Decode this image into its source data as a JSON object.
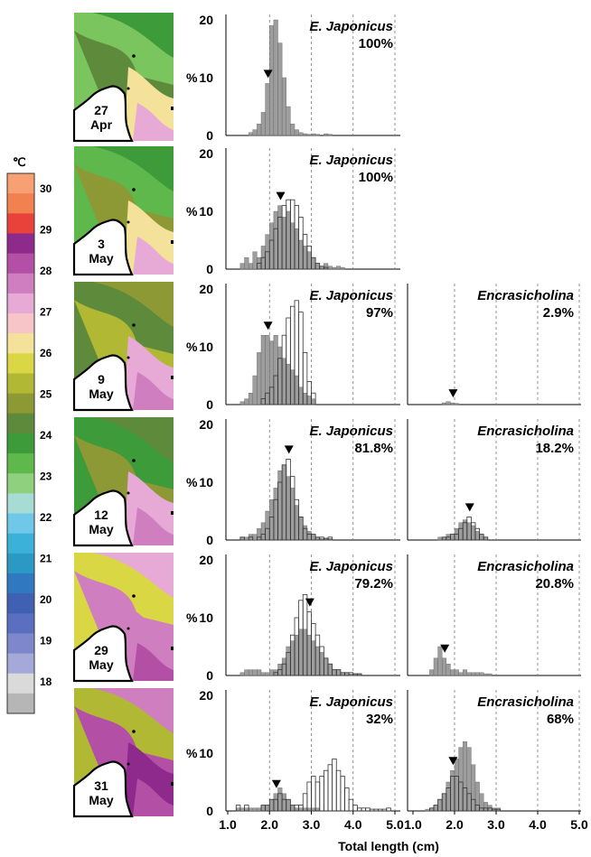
{
  "colorbar": {
    "unit": "℃",
    "ticks": [
      "30",
      "29",
      "28",
      "27",
      "26",
      "25",
      "24",
      "23",
      "22",
      "21",
      "20",
      "19",
      "18"
    ],
    "colors": [
      "#f6a073",
      "#f1824f",
      "#e8423a",
      "#8e2a8c",
      "#b44fa6",
      "#cf7ec0",
      "#e7aad6",
      "#f7c5c8",
      "#f4e19a",
      "#d9d743",
      "#b1b834",
      "#8d9934",
      "#5e8a3c",
      "#3e9b3a",
      "#5fb84c",
      "#8ed07d",
      "#a6dcd4",
      "#6fc8ea",
      "#3bb1d9",
      "#2a9ac5",
      "#3078c0",
      "#3f60b3",
      "#5a6fc0",
      "#7e87cc",
      "#a4a9d9",
      "#dadada",
      "#b6b6b6"
    ]
  },
  "maps": [
    {
      "day": "27",
      "month": "Apr"
    },
    {
      "day": "3",
      "month": "May"
    },
    {
      "day": "9",
      "month": "May"
    },
    {
      "day": "12",
      "month": "May"
    },
    {
      "day": "29",
      "month": "May"
    },
    {
      "day": "31",
      "month": "May"
    }
  ],
  "axis": {
    "xlabel": "Total length (cm)",
    "left_xticks": [
      "1.0",
      "2.0",
      "3.0",
      "4.0",
      "5.0"
    ],
    "right_xticks": [
      "1.0",
      "2.0",
      "3.0",
      "4.0",
      "5.0"
    ],
    "ylabel": "%",
    "yticks": [
      "20",
      "10",
      "0"
    ]
  },
  "chart_data": [
    {
      "type": "bar",
      "panel": "row1-left",
      "species": "E. Japonicus",
      "percent": "100%",
      "xlim": [
        1.0,
        5.0
      ],
      "ylim": [
        0,
        20
      ],
      "marker_x": 1.9,
      "bin_width": 0.1,
      "bin_start": 1.5,
      "series": [
        {
          "name": "filled",
          "values": [
            0.5,
            1,
            2,
            4,
            9,
            19,
            20,
            16,
            10,
            5,
            2,
            1,
            0.5,
            0.3,
            0.2,
            0.3,
            0.2,
            0,
            0.3,
            0.2
          ]
        }
      ]
    },
    {
      "type": "bar",
      "panel": "row2-left",
      "species": "E. Japonicus",
      "percent": "100%",
      "xlim": [
        1.0,
        5.0
      ],
      "ylim": [
        0,
        20
      ],
      "marker_x": 2.2,
      "bin_width": 0.1,
      "bin_start": 1.3,
      "series": [
        {
          "name": "filled",
          "values": [
            1,
            2,
            1,
            3,
            2,
            4,
            6,
            8,
            10,
            11,
            9,
            10,
            8,
            7,
            5,
            4,
            3,
            2,
            1,
            0.5,
            1,
            0.5,
            0.3,
            0.5,
            0.3
          ]
        },
        {
          "name": "open",
          "values": [
            0,
            0,
            0,
            0,
            1,
            2,
            3,
            5,
            7,
            9,
            11,
            12,
            12,
            11,
            9,
            6,
            4,
            2,
            1,
            0.5,
            0.3,
            0,
            0,
            0,
            0
          ]
        }
      ]
    },
    {
      "type": "bar",
      "panel": "row3-left",
      "species": "E. Japonicus",
      "percent": "97%",
      "xlim": [
        1.0,
        5.0
      ],
      "ylim": [
        0,
        20
      ],
      "marker_x": 1.9,
      "bin_width": 0.1,
      "bin_start": 1.3,
      "series": [
        {
          "name": "filled",
          "values": [
            0.5,
            1,
            2,
            5,
            9,
            12,
            12,
            11,
            12,
            10,
            8,
            7,
            6,
            5,
            3,
            2,
            1.5,
            1
          ]
        },
        {
          "name": "open",
          "values": [
            0,
            0,
            0,
            0,
            0,
            1,
            2,
            3,
            5,
            8,
            12,
            15,
            17,
            18,
            16,
            9,
            4,
            2
          ]
        }
      ]
    },
    {
      "type": "bar",
      "panel": "row3-right",
      "species": "Encrasicholina",
      "percent": "2.9%",
      "xlim": [
        1.0,
        5.0
      ],
      "ylim": [
        0,
        20
      ],
      "marker_x": 1.9,
      "bin_width": 0.1,
      "bin_start": 1.7,
      "series": [
        {
          "name": "filled",
          "values": [
            0.3,
            0.5,
            0.3,
            0.2
          ]
        }
      ]
    },
    {
      "type": "bar",
      "panel": "row4-left",
      "species": "E. Japonicus",
      "percent": "81.8%",
      "xlim": [
        1.0,
        5.0
      ],
      "ylim": [
        0,
        20
      ],
      "marker_x": 2.4,
      "bin_width": 0.1,
      "bin_start": 1.3,
      "series": [
        {
          "name": "filled",
          "values": [
            0.5,
            0.5,
            1,
            1,
            2,
            3,
            5,
            7,
            9,
            12,
            13,
            11,
            9,
            6,
            4,
            2.5,
            1.5,
            1,
            0.5,
            0.3,
            0.3,
            0.3
          ]
        },
        {
          "name": "open",
          "values": [
            0.5,
            0,
            0.5,
            0,
            0.5,
            1,
            2,
            4,
            7,
            10,
            13,
            14,
            11,
            7,
            4,
            2,
            1,
            1,
            0.5,
            0.5,
            0.3,
            0.5
          ]
        }
      ]
    },
    {
      "type": "bar",
      "panel": "row4-right",
      "species": "Encrasicholina",
      "percent": "18.2%",
      "xlim": [
        1.0,
        5.0
      ],
      "ylim": [
        0,
        20
      ],
      "marker_x": 2.3,
      "bin_width": 0.1,
      "bin_start": 1.6,
      "series": [
        {
          "name": "filled",
          "values": [
            0.5,
            0.5,
            1,
            1,
            2,
            3,
            3.5,
            3,
            2.5,
            1.5,
            1,
            0.5
          ]
        },
        {
          "name": "open",
          "values": [
            0,
            0.5,
            0.5,
            1,
            1,
            2,
            3,
            4,
            3,
            2,
            1,
            0.5
          ]
        }
      ]
    },
    {
      "type": "bar",
      "panel": "row5-left",
      "species": "E. Japonicus",
      "percent": "79.2%",
      "xlim": [
        1.0,
        5.0
      ],
      "ylim": [
        0,
        20
      ],
      "marker_x": 2.9,
      "bin_width": 0.1,
      "bin_start": 1.3,
      "series": [
        {
          "name": "filled",
          "values": [
            0.5,
            1,
            1,
            1,
            1,
            0.5,
            0.5,
            1,
            1,
            2,
            3,
            5,
            6,
            7,
            8,
            8,
            7,
            6,
            5,
            4,
            3,
            2,
            1,
            1,
            0.5,
            0.5,
            0.3,
            0.3,
            0.3
          ]
        },
        {
          "name": "open",
          "values": [
            0,
            0,
            0,
            0,
            0,
            0,
            0,
            0,
            0.5,
            1,
            2,
            4,
            7,
            10,
            13,
            14,
            11,
            9,
            7,
            5,
            3,
            2,
            1,
            1,
            0.5,
            0.5,
            0.5,
            0.3,
            0.3
          ]
        }
      ]
    },
    {
      "type": "bar",
      "panel": "row5-right",
      "species": "Encrasicholina",
      "percent": "20.8%",
      "xlim": [
        1.0,
        5.0
      ],
      "ylim": [
        0,
        20
      ],
      "marker_x": 1.7,
      "bin_width": 0.1,
      "bin_start": 1.4,
      "series": [
        {
          "name": "filled",
          "values": [
            1,
            3,
            5,
            3,
            2,
            1,
            1,
            0.5,
            1,
            0.5,
            0.5,
            0.5,
            0.5,
            0.3,
            0.3
          ]
        }
      ]
    },
    {
      "type": "bar",
      "panel": "row6-left",
      "species": "E. Japonicus",
      "percent": "32%",
      "xlim": [
        1.0,
        5.0
      ],
      "ylim": [
        0,
        20
      ],
      "marker_x": 2.1,
      "bin_width": 0.1,
      "bin_start": 1.2,
      "series": [
        {
          "name": "filled",
          "values": [
            0.5,
            0.5,
            0.5,
            0.5,
            0.5,
            0.5,
            1,
            1,
            2,
            3,
            4,
            3,
            2,
            1,
            0.5,
            0.5,
            0.5,
            0.5,
            0.5,
            0.5
          ]
        },
        {
          "name": "open",
          "values": [
            1,
            0,
            1,
            0,
            0,
            0,
            1,
            1,
            2,
            2,
            3,
            2,
            2,
            1,
            1,
            1,
            3,
            5,
            6,
            5,
            6,
            7,
            8,
            9,
            7,
            6,
            4,
            2,
            1,
            0.5,
            0.5,
            0.5,
            0.3,
            0.3,
            0.3,
            0.3,
            0.5
          ]
        }
      ]
    },
    {
      "type": "bar",
      "panel": "row6-right",
      "species": "Encrasicholina",
      "percent": "68%",
      "xlim": [
        1.0,
        5.0
      ],
      "ylim": [
        0,
        20
      ],
      "marker_x": 1.9,
      "bin_width": 0.1,
      "bin_start": 1.3,
      "series": [
        {
          "name": "filled",
          "values": [
            0.3,
            0.5,
            1,
            2,
            3,
            5,
            7,
            9,
            11,
            12,
            11,
            8,
            5,
            3,
            1.5,
            1,
            0.5,
            0.5
          ]
        },
        {
          "name": "open",
          "values": [
            0,
            0.5,
            1,
            2,
            3,
            4,
            6,
            6,
            5,
            4,
            3,
            2,
            1,
            0.5,
            0.5,
            0.5,
            0.3,
            0.3
          ]
        }
      ]
    }
  ]
}
